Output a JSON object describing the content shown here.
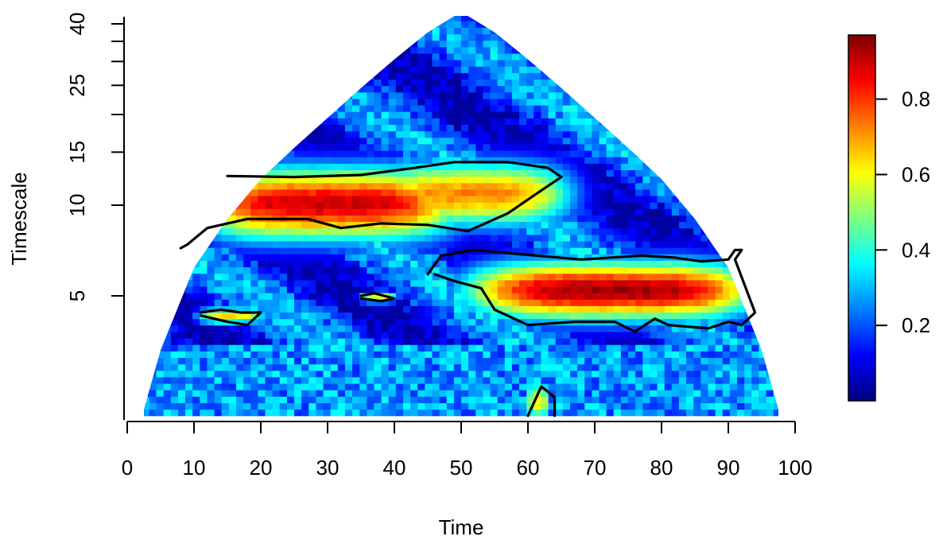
{
  "chart_data": {
    "type": "heatmap",
    "title": "",
    "xlabel": "Time",
    "ylabel": "Timescale",
    "x_ticks": [
      "0",
      "10",
      "20",
      "30",
      "40",
      "50",
      "60",
      "70",
      "80",
      "90",
      "100"
    ],
    "y_ticks": [
      "5",
      "10",
      "15",
      "25",
      "40"
    ],
    "y_tick_values": [
      5,
      10,
      15,
      25,
      40
    ],
    "y_minor_ticks": [
      5,
      10,
      15,
      20,
      25,
      30,
      35,
      40
    ],
    "xlim": [
      0,
      100
    ],
    "y_scale": "log",
    "ylim": [
      2,
      43
    ],
    "colorbar": {
      "ticks": [
        "0.2",
        "0.4",
        "0.6",
        "0.8"
      ],
      "tick_values": [
        0.2,
        0.4,
        0.6,
        0.8
      ],
      "range": [
        0,
        0.97
      ],
      "palette": [
        "#00007f",
        "#0000ff",
        "#007fff",
        "#00ffff",
        "#7fff7f",
        "#ffff00",
        "#ff7f00",
        "#ff0000",
        "#7f0000"
      ]
    },
    "cone_of_influence": [
      [
        2.5,
        2.1
      ],
      [
        5,
        3.3
      ],
      [
        10,
        6.2
      ],
      [
        15,
        9.0
      ],
      [
        20,
        12.2
      ],
      [
        25,
        15.5
      ],
      [
        30,
        19.5
      ],
      [
        35,
        24.5
      ],
      [
        40,
        30.5
      ],
      [
        45,
        37.5
      ],
      [
        49,
        42.5
      ],
      [
        51,
        42.5
      ],
      [
        55,
        37.5
      ],
      [
        60,
        30.5
      ],
      [
        65,
        24.5
      ],
      [
        70,
        19.5
      ],
      [
        75,
        15.5
      ],
      [
        80,
        12.2
      ],
      [
        85,
        9.0
      ],
      [
        90,
        6.2
      ],
      [
        95,
        3.3
      ],
      [
        97.5,
        2.1
      ]
    ],
    "regions": [
      {
        "x": [
          12,
          48
        ],
        "scale": [
          8.2,
          12.5
        ],
        "peak": 0.9
      },
      {
        "x": [
          38,
          65
        ],
        "scale": [
          9.0,
          13.2
        ],
        "peak": 0.72
      },
      {
        "x": [
          53,
          92
        ],
        "scale": [
          4.4,
          6.2
        ],
        "peak": 0.94
      },
      {
        "x": [
          11,
          20
        ],
        "scale": [
          4.1,
          4.5
        ],
        "peak": 0.62
      },
      {
        "x": [
          35,
          40
        ],
        "scale": [
          4.8,
          5.1
        ],
        "peak": 0.6
      },
      {
        "x": [
          60,
          63
        ],
        "scale": [
          2.0,
          2.5
        ],
        "peak": 0.62
      }
    ],
    "significance_contours": [
      [
        [
          15,
          12.5
        ],
        [
          25,
          12.4
        ],
        [
          35,
          12.6
        ],
        [
          43,
          13.3
        ],
        [
          46,
          13.6
        ],
        [
          49,
          13.9
        ],
        [
          57,
          13.9
        ],
        [
          63,
          13.3
        ],
        [
          65,
          12.4
        ],
        [
          62,
          11.2
        ],
        [
          57,
          9.4
        ],
        [
          51,
          8.2
        ],
        [
          45,
          8.6
        ],
        [
          38,
          8.7
        ],
        [
          32,
          8.4
        ],
        [
          27,
          9.0
        ],
        [
          18,
          9.0
        ],
        [
          12,
          8.4
        ],
        [
          9,
          7.4
        ],
        [
          8,
          7.2
        ]
      ],
      [
        [
          45,
          5.9
        ],
        [
          47,
          6.8
        ],
        [
          52,
          7.1
        ],
        [
          58,
          6.9
        ],
        [
          68,
          6.6
        ],
        [
          77,
          6.8
        ],
        [
          82,
          6.7
        ],
        [
          86,
          6.5
        ],
        [
          90,
          6.6
        ],
        [
          91,
          7.1
        ],
        [
          92,
          7.1
        ],
        [
          91,
          6.6
        ],
        [
          94,
          4.4
        ],
        [
          92,
          4.0
        ],
        [
          90,
          4.1
        ],
        [
          87,
          3.9
        ],
        [
          81,
          4.0
        ],
        [
          79,
          4.2
        ],
        [
          76,
          3.8
        ],
        [
          73,
          4.1
        ],
        [
          67,
          4.1
        ],
        [
          60,
          4.0
        ],
        [
          55,
          4.5
        ],
        [
          53,
          5.3
        ],
        [
          49,
          5.6
        ],
        [
          46,
          5.9
        ]
      ],
      [
        [
          11,
          4.4
        ],
        [
          14,
          4.5
        ],
        [
          17,
          4.4
        ],
        [
          20,
          4.4
        ],
        [
          18,
          4.0
        ],
        [
          15,
          4.1
        ],
        [
          13,
          4.2
        ],
        [
          11,
          4.3
        ]
      ],
      [
        [
          35,
          5.0
        ],
        [
          37,
          5.1
        ],
        [
          40,
          4.9
        ],
        [
          38,
          4.8
        ],
        [
          35,
          4.9
        ]
      ],
      [
        [
          60,
          2.0
        ],
        [
          62,
          2.5
        ],
        [
          63,
          2.4
        ],
        [
          64,
          2.3
        ],
        [
          64,
          2.0
        ]
      ]
    ]
  }
}
